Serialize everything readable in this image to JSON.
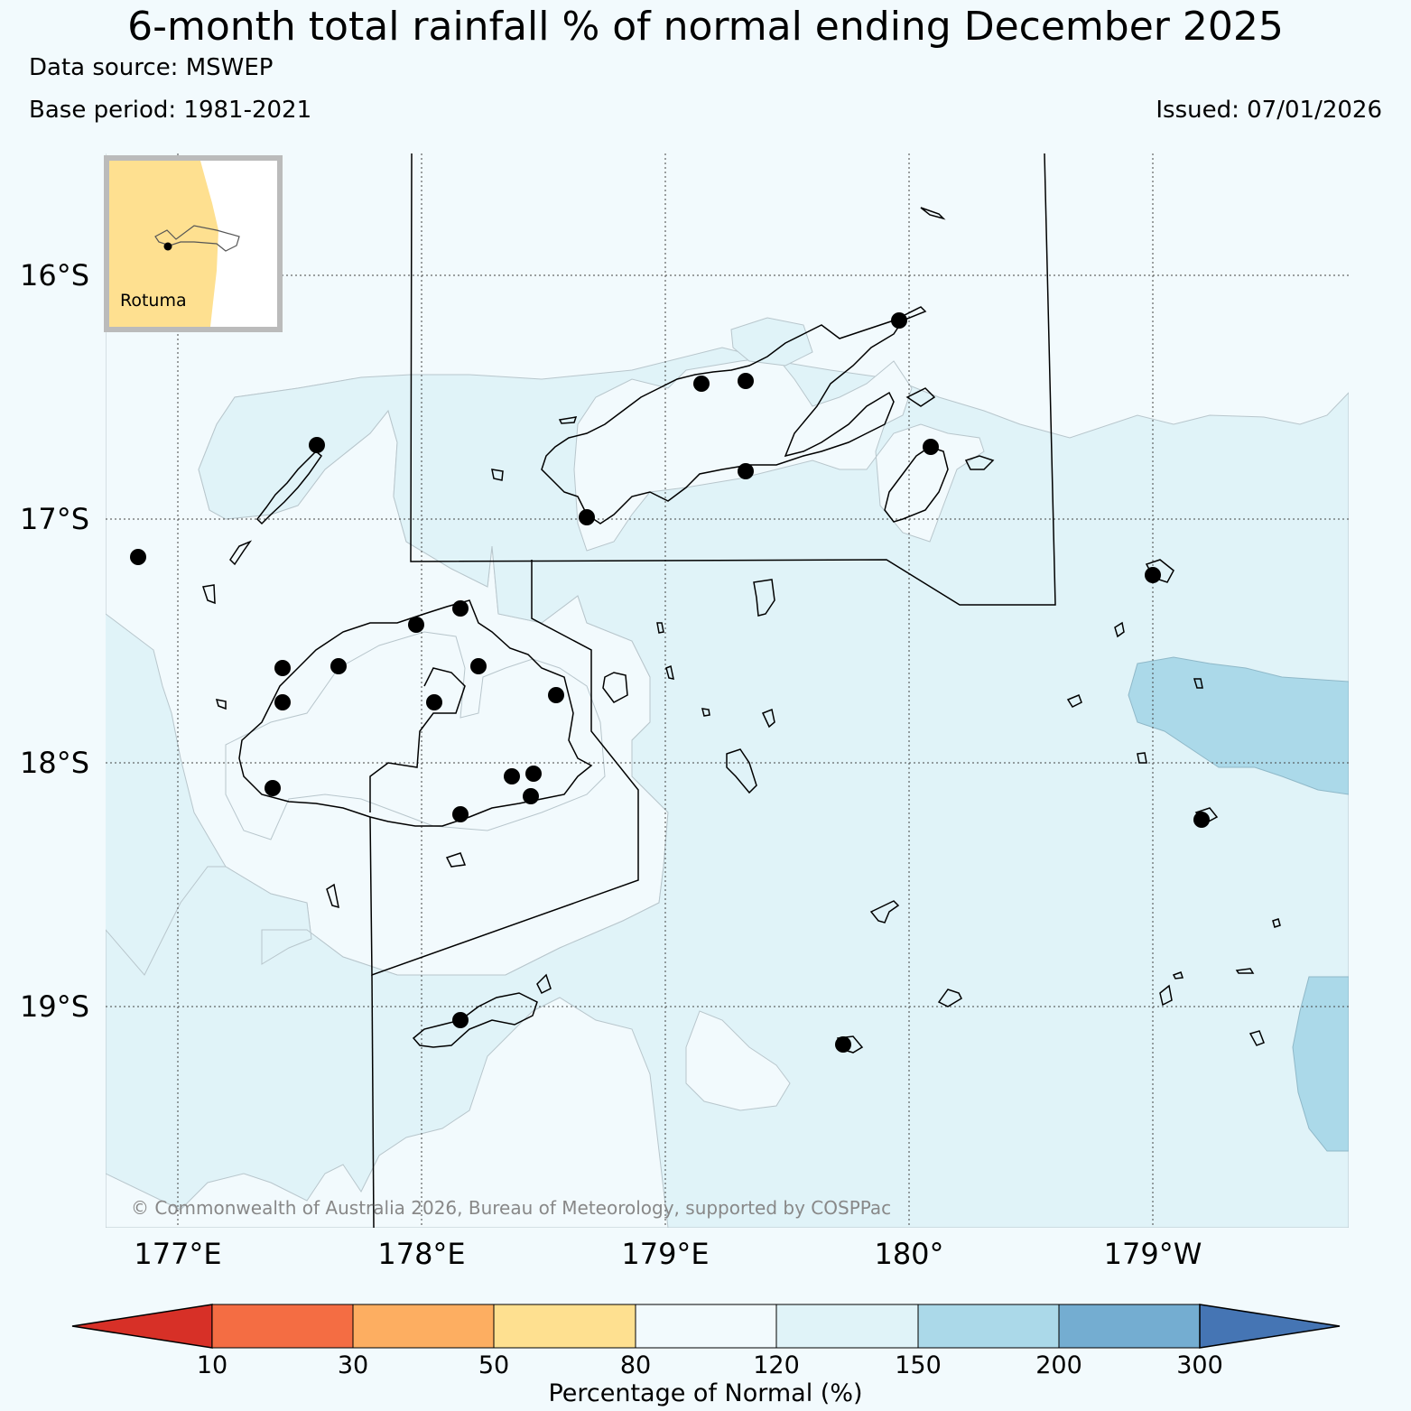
{
  "title": "6-month total rainfall % of normal ending December 2025",
  "data_source": "Data source: MSWEP",
  "base_period": "Base period: 1981-2021",
  "issued": "Issued: 07/01/2026",
  "inset": {
    "label": "Rotuma"
  },
  "copyright": "© Commonwealth of Australia 2026, Bureau of Meteorology, supported by COSPPac",
  "axes": {
    "lon_ticks": [
      "177°E",
      "178°E",
      "179°E",
      "180°",
      "179°W"
    ],
    "lat_ticks": [
      "16°S",
      "17°S",
      "18°S",
      "19°S"
    ]
  },
  "colorbar": {
    "title": "Percentage of Normal (%)",
    "boundaries": [
      "10",
      "30",
      "50",
      "80",
      "120",
      "150",
      "200",
      "300"
    ],
    "colors": [
      "#d73027",
      "#f46d43",
      "#fdae61",
      "#fee090",
      "#f2fafd",
      "#e0f3f8",
      "#abd9e9",
      "#74add1",
      "#4575b4"
    ]
  },
  "colors": {
    "background": "#f2fafd",
    "band_120_150": "#e0f3f8",
    "band_150_200": "#abd9e9",
    "band_80_120": "#f2fafd",
    "inset_land": "#fee090",
    "station": "#000000"
  }
}
